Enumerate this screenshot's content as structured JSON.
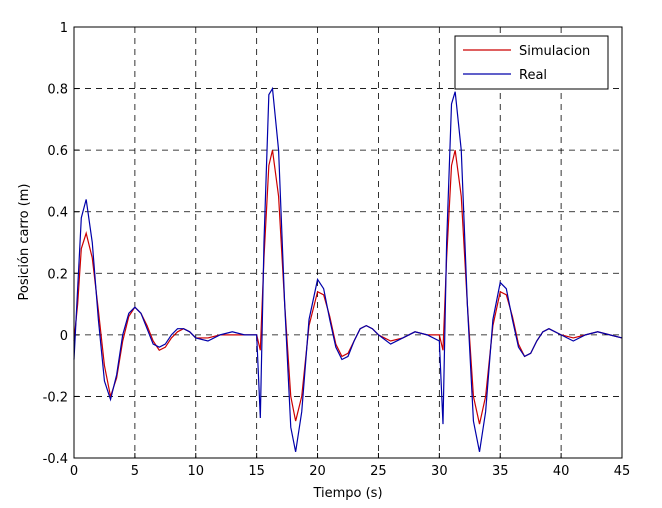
{
  "chart_data": {
    "type": "line",
    "xlabel": "Tiempo (s)",
    "ylabel": "Posición carro (m)",
    "x": [
      0,
      0.3,
      0.6,
      1,
      1.5,
      2,
      2.5,
      3,
      3.5,
      4,
      4.5,
      5,
      5.5,
      6,
      6.5,
      7,
      7.5,
      8,
      8.5,
      9,
      9.5,
      10,
      11,
      12,
      13,
      14,
      15,
      15.3,
      15.6,
      16,
      16.3,
      16.8,
      17.3,
      17.8,
      18.2,
      18.7,
      19.3,
      20,
      20.5,
      21,
      21.5,
      22,
      22.5,
      23,
      23.5,
      24,
      24.5,
      25,
      26,
      27,
      28,
      29,
      30,
      30.3,
      30.6,
      31,
      31.3,
      31.8,
      32.3,
      32.8,
      33.3,
      33.8,
      34.4,
      35,
      35.5,
      36,
      36.5,
      37,
      37.5,
      38,
      38.5,
      39,
      40,
      41,
      42,
      43,
      44,
      45
    ],
    "series": [
      {
        "name": "Simulacion",
        "color": "#cc0000",
        "values": [
          -0.02,
          0.1,
          0.28,
          0.33,
          0.25,
          0.08,
          -0.1,
          -0.2,
          -0.14,
          -0.02,
          0.06,
          0.09,
          0.07,
          0.03,
          -0.02,
          -0.05,
          -0.04,
          -0.01,
          0.01,
          0.02,
          0.01,
          -0.01,
          -0.01,
          0,
          0,
          0,
          0,
          -0.05,
          0.25,
          0.55,
          0.6,
          0.45,
          0.1,
          -0.2,
          -0.28,
          -0.2,
          0.03,
          0.14,
          0.13,
          0.06,
          -0.03,
          -0.07,
          -0.06,
          -0.02,
          0.02,
          0.03,
          0.02,
          0,
          -0.02,
          -0.01,
          0.01,
          0,
          0,
          -0.05,
          0.25,
          0.55,
          0.6,
          0.45,
          0.1,
          -0.2,
          -0.29,
          -0.2,
          0.03,
          0.14,
          0.13,
          0.06,
          -0.03,
          -0.07,
          -0.06,
          -0.02,
          0.01,
          0.02,
          0,
          -0.01,
          0,
          0.01,
          0,
          -0.01
        ]
      },
      {
        "name": "Real",
        "color": "#0000aa",
        "values": [
          -0.08,
          0.15,
          0.38,
          0.44,
          0.3,
          0.05,
          -0.15,
          -0.21,
          -0.13,
          0,
          0.07,
          0.09,
          0.07,
          0.02,
          -0.03,
          -0.04,
          -0.03,
          0,
          0.02,
          0.02,
          0.01,
          -0.01,
          -0.02,
          0,
          0.01,
          0,
          0,
          -0.27,
          0.3,
          0.78,
          0.8,
          0.6,
          0.1,
          -0.3,
          -0.38,
          -0.25,
          0.05,
          0.18,
          0.15,
          0.05,
          -0.04,
          -0.08,
          -0.07,
          -0.02,
          0.02,
          0.03,
          0.02,
          0,
          -0.03,
          -0.01,
          0.01,
          0,
          -0.02,
          -0.29,
          0.3,
          0.75,
          0.79,
          0.6,
          0.1,
          -0.28,
          -0.38,
          -0.25,
          0.05,
          0.17,
          0.15,
          0.05,
          -0.04,
          -0.07,
          -0.06,
          -0.02,
          0.01,
          0.02,
          0,
          -0.02,
          0,
          0.01,
          0,
          -0.01
        ]
      }
    ],
    "xlim": [
      0,
      45
    ],
    "xticks": [
      0,
      5,
      10,
      15,
      20,
      25,
      30,
      35,
      40,
      45
    ],
    "ylim": [
      -0.4,
      1
    ],
    "yticks": [
      -0.4,
      -0.2,
      0,
      0.2,
      0.4,
      0.6,
      0.8,
      1
    ],
    "grid": true,
    "legend": "top-right"
  }
}
